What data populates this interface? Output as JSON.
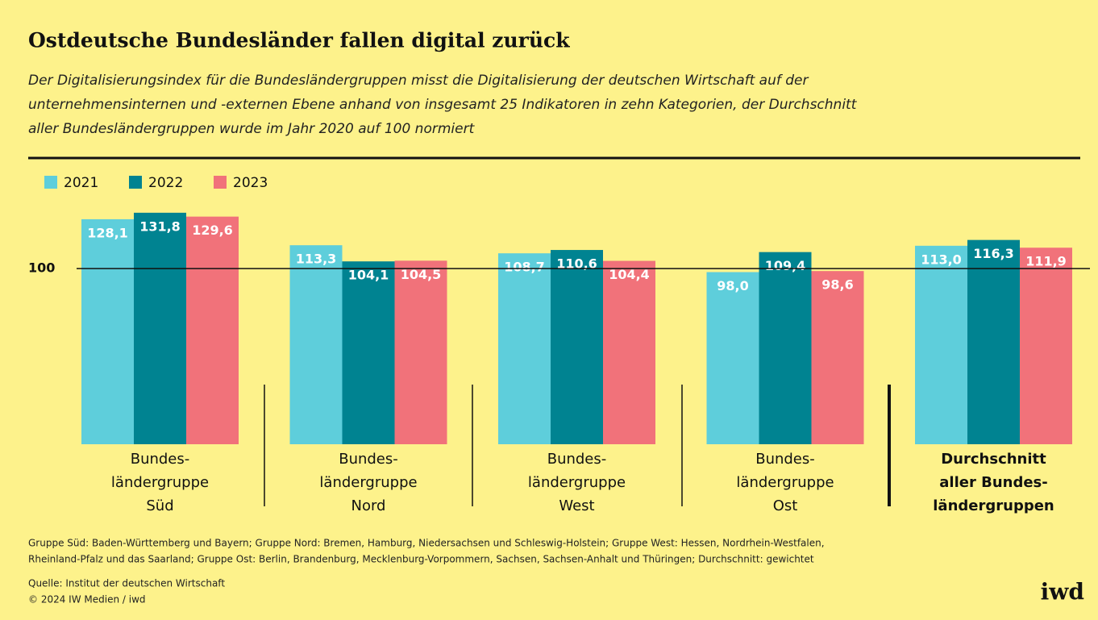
{
  "chart_data": {
    "type": "bar",
    "title": "Ostdeutsche Bundesländer fallen digital zurück",
    "subtitle": [
      "Der Digitalisierungsindex für die Bundesländergruppen misst die Digitalisierung der deutschen Wirtschaft auf der",
      "unternehmensinternen und -externen Ebene anhand von insgesamt 25 Indikatoren in zehn Kategorien, der Durchschnitt",
      "aller Bundesländergruppen wurde im Jahr 2020 auf 100 normiert"
    ],
    "categories": [
      [
        "Bundes-",
        "ländergruppe",
        "Süd"
      ],
      [
        "Bundes-",
        "ländergruppe",
        "Nord"
      ],
      [
        "Bundes-",
        "ländergruppe",
        "West"
      ],
      [
        "Bundes-",
        "ländergruppe",
        "Ost"
      ],
      [
        "Durchschnitt",
        "aller Bundes-",
        "ländergruppen"
      ]
    ],
    "series": [
      {
        "name": "2021",
        "color": "#5ecedb",
        "values": [
          128.1,
          113.3,
          108.7,
          98.0,
          113.0
        ],
        "value_labels": [
          "128,1",
          "113,3",
          "108,7",
          "98,0",
          "113,0"
        ]
      },
      {
        "name": "2022",
        "color": "#008391",
        "values": [
          131.8,
          104.1,
          110.6,
          109.4,
          116.3
        ],
        "value_labels": [
          "131,8",
          "104,1",
          "110,6",
          "109,4",
          "116,3"
        ]
      },
      {
        "name": "2023",
        "color": "#f1727a",
        "values": [
          129.6,
          104.5,
          104.4,
          98.6,
          111.9
        ],
        "value_labels": [
          "129,6",
          "104,5",
          "104,4",
          "98,6",
          "111,9"
        ]
      }
    ],
    "ylim": [
      0,
      140
    ],
    "yticks": [
      100
    ],
    "footnote": [
      "Gruppe Süd: Baden-Württemberg und Bayern; Gruppe Nord: Bremen, Hamburg, Niedersachsen und Schleswig-Holstein; Gruppe West: Hessen, Nordrhein-Westfalen,",
      "Rheinland-Pfalz und das Saarland; Gruppe Ost: Berlin, Brandenburg, Mecklenburg-Vorpommern, Sachsen, Sachsen-Anhalt und Thüringen; Durchschnitt: gewichtet"
    ],
    "source": "Quelle: Institut der deutschen Wirtschaft",
    "copyright": "© 2024 IW Medien / iwd",
    "logo": "iwd"
  }
}
